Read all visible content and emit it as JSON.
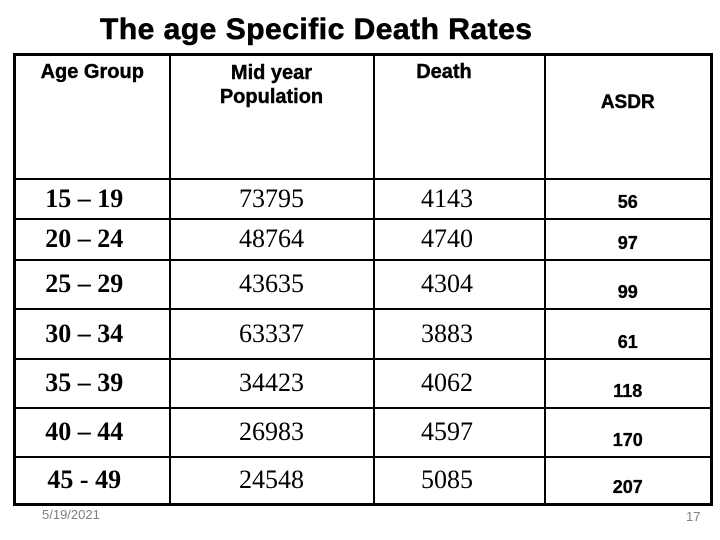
{
  "slide": {
    "title": "The age Specific Death Rates",
    "footer": {
      "date": "5/19/2021",
      "page_number": "17"
    }
  },
  "table": {
    "header": {
      "age_group": "Age Group",
      "mid_year_line1": "Mid year",
      "mid_year_line2": "Population",
      "death": "Death",
      "asdr": "ASDR"
    },
    "rows": [
      {
        "age_group": "15 – 19",
        "mid_year_population": "73795",
        "deaths": "4143",
        "asdr": "56"
      },
      {
        "age_group": "20 – 24",
        "mid_year_population": "48764",
        "deaths": "4740",
        "asdr": "97"
      },
      {
        "age_group": "25 – 29",
        "mid_year_population": "43635",
        "deaths": "4304",
        "asdr": "99"
      },
      {
        "age_group": "30 – 34",
        "mid_year_population": "63337",
        "deaths": "3883",
        "asdr": "61"
      },
      {
        "age_group": "35 – 39",
        "mid_year_population": "34423",
        "deaths": "4062",
        "asdr": "118"
      },
      {
        "age_group": "40 – 44",
        "mid_year_population": "26983",
        "deaths": "4597",
        "asdr": "170"
      },
      {
        "age_group": "45 - 49",
        "mid_year_population": "24548",
        "deaths": "5085",
        "asdr": "207"
      }
    ]
  },
  "colors": {
    "text": "#000000",
    "border": "#000000",
    "footer_text": "#7f7f7f",
    "background": "#ffffff"
  }
}
